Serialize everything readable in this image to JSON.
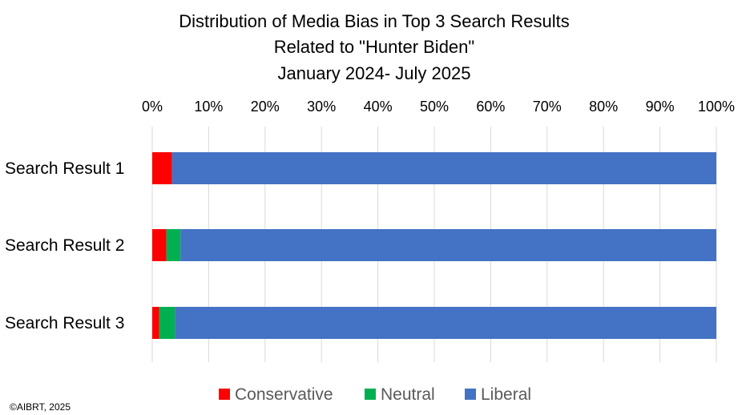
{
  "chart_data": {
    "type": "bar",
    "orientation": "horizontal",
    "stacked": true,
    "percent": true,
    "title": [
      "Distribution of Media Bias in Top 3 Search Results",
      "Related to \"Hunter Biden\"",
      "January 2024- July 2025"
    ],
    "categories": [
      "Search Result 1",
      "Search Result 2",
      "Search Result 3"
    ],
    "series": [
      {
        "name": "Conservative",
        "color": "#ff0000",
        "values": [
          3.5,
          2.5,
          1.2
        ]
      },
      {
        "name": "Neutral",
        "color": "#00b050",
        "values": [
          0,
          2.5,
          2.8
        ]
      },
      {
        "name": "Liberal",
        "color": "#4472c4",
        "values": [
          96.5,
          95.0,
          96.0
        ]
      }
    ],
    "xlim": [
      0,
      100
    ],
    "xticks": [
      "0%",
      "10%",
      "20%",
      "30%",
      "40%",
      "50%",
      "60%",
      "70%",
      "80%",
      "90%",
      "100%"
    ],
    "axis_position": "top",
    "grid": true,
    "legend": "bottom",
    "footnote": "©AIBRT, 2025"
  }
}
